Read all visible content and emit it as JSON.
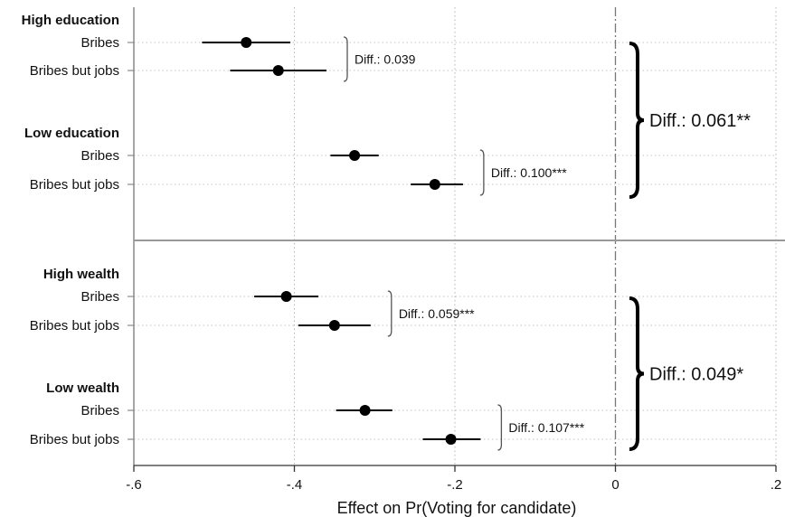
{
  "chart_data": {
    "type": "scatter",
    "subtype": "coefficient-plot-horizontal",
    "xlabel": "Effect on Pr(Voting for candidate)",
    "xlim": [
      -0.6,
      0.2
    ],
    "x_ticks": [
      "-.6",
      "-.4",
      "-.2",
      "0",
      ".2"
    ],
    "x_tick_values": [
      -0.6,
      -0.4,
      -0.2,
      0,
      0.2
    ],
    "vertical_grid": true,
    "reference_line": {
      "x": 0,
      "style": "dash-dot"
    },
    "panels": [
      {
        "groups": [
          {
            "label": "High education",
            "rows": [
              {
                "label": "Bribes",
                "estimate": -0.46,
                "ci": [
                  -0.515,
                  -0.405
                ]
              },
              {
                "label": "Bribes but jobs",
                "estimate": -0.42,
                "ci": [
                  -0.48,
                  -0.36
                ]
              }
            ],
            "diff_label": "Diff.: 0.039"
          },
          {
            "label": "Low education",
            "rows": [
              {
                "label": "Bribes",
                "estimate": -0.325,
                "ci": [
                  -0.355,
                  -0.295
                ]
              },
              {
                "label": "Bribes but jobs",
                "estimate": -0.225,
                "ci": [
                  -0.255,
                  -0.19
                ]
              }
            ],
            "diff_label": "Diff.: 0.100***"
          }
        ],
        "panel_diff_label": "Diff.: 0.061**"
      },
      {
        "groups": [
          {
            "label": "High wealth",
            "rows": [
              {
                "label": "Bribes",
                "estimate": -0.41,
                "ci": [
                  -0.45,
                  -0.37
                ]
              },
              {
                "label": "Bribes but jobs",
                "estimate": -0.35,
                "ci": [
                  -0.395,
                  -0.305
                ]
              }
            ],
            "diff_label": "Diff.: 0.059***"
          },
          {
            "label": "Low wealth",
            "rows": [
              {
                "label": "Bribes",
                "estimate": -0.312,
                "ci": [
                  -0.348,
                  -0.278
                ]
              },
              {
                "label": "Bribes but jobs",
                "estimate": -0.205,
                "ci": [
                  -0.24,
                  -0.168
                ]
              }
            ],
            "diff_label": "Diff.: 0.107***"
          }
        ],
        "panel_diff_label": "Diff.: 0.049*"
      }
    ]
  }
}
